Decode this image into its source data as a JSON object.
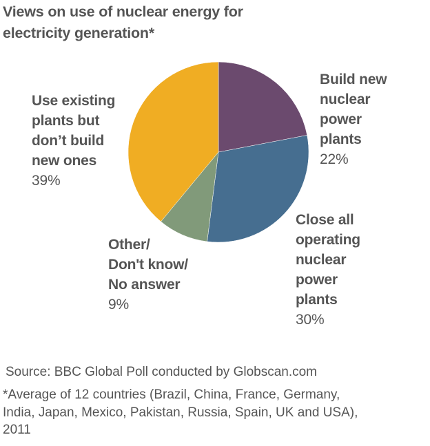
{
  "title_lines": [
    "Views on use of nuclear energy for",
    "electricity generation*"
  ],
  "chart_data": {
    "type": "pie",
    "title": "Views on use of nuclear energy for electricity generation*",
    "slices": [
      {
        "name_lines": [
          "Build new",
          "nuclear",
          "power",
          "plants"
        ],
        "label": "Build new nuclear power plants",
        "value": 22,
        "pct_text": "22%",
        "color": "#6b4a6e"
      },
      {
        "name_lines": [
          "Close all",
          "operating",
          "nuclear",
          "power",
          "plants"
        ],
        "label": "Close all operating nuclear power plants",
        "value": 30,
        "pct_text": "30%",
        "color": "#466e90"
      },
      {
        "name_lines": [
          "Other/",
          "Don't know/",
          "No answer"
        ],
        "label": "Other/ Don't know/ No answer",
        "value": 9,
        "pct_text": "9%",
        "color": "#819a7a"
      },
      {
        "name_lines": [
          "Use existing",
          "plants but",
          "don’t build",
          "new ones"
        ],
        "label": "Use existing plants but don’t build new ones",
        "value": 39,
        "pct_text": "39%",
        "color": "#f0ad23"
      }
    ]
  },
  "source": "Source: BBC Global Poll conducted by Globscan.com",
  "footnote_lines": [
    "*Average of 12 countries (Brazil, China, France, Germany,",
    "India, Japan, Mexico, Pakistan, Russia, Spain, UK and USA),",
    "2011"
  ]
}
